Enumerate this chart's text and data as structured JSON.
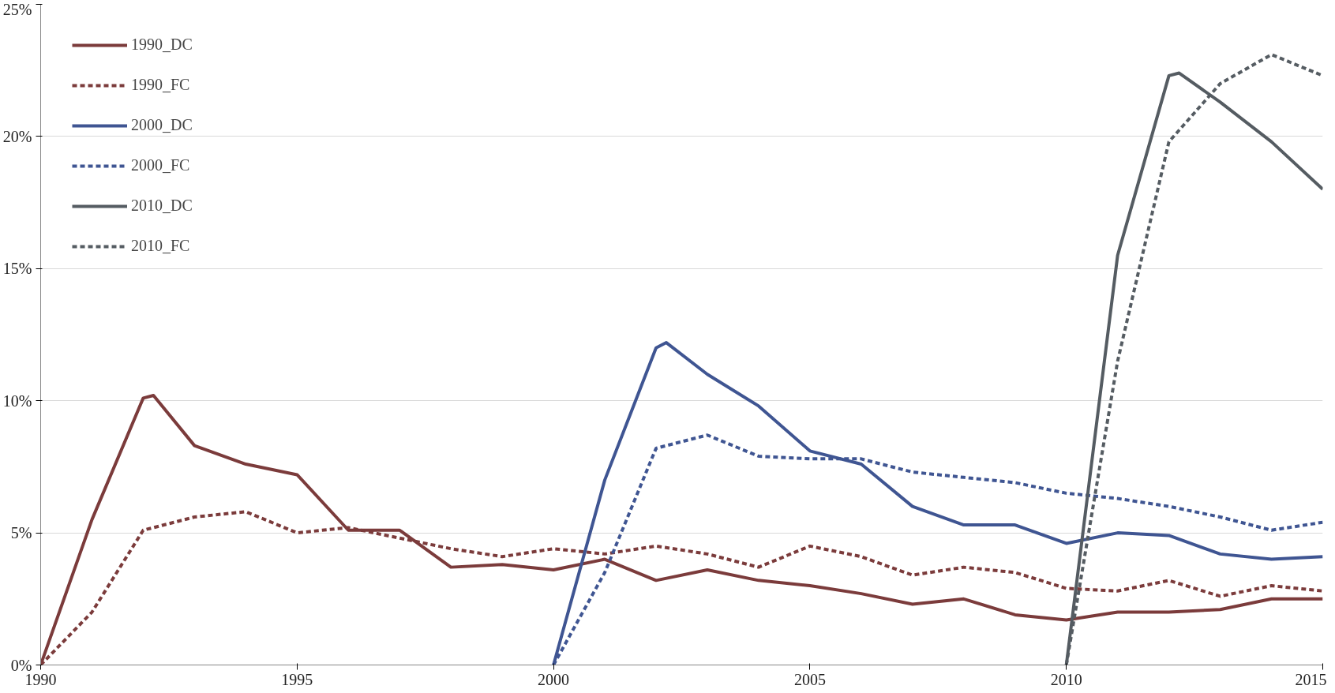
{
  "chart_data": {
    "type": "line",
    "xlim": [
      1990,
      2015
    ],
    "xticks": [
      1990,
      1995,
      2000,
      2005,
      2010,
      2015
    ],
    "ylim": [
      0,
      25
    ],
    "yticks": [
      {
        "value": 0,
        "label": "0%"
      },
      {
        "value": 5,
        "label": "5%"
      },
      {
        "value": 10,
        "label": "10%"
      },
      {
        "value": 15,
        "label": "15%"
      },
      {
        "value": 20,
        "label": "20%"
      },
      {
        "value": 25,
        "label": "25%"
      }
    ],
    "grid": "y",
    "legend": "top left",
    "marker": "none",
    "series": [
      {
        "name": "1990_DC",
        "color": "#7b3b3b",
        "line_style": "solid",
        "x": [
          1990,
          1991,
          1992,
          1992.2,
          1993,
          1994,
          1995,
          1996,
          1997,
          1998,
          1999,
          2000,
          2001,
          2002,
          2003,
          2004,
          2005,
          2006,
          2007,
          2008,
          2009,
          2010,
          2011,
          2012,
          2013,
          2014,
          2015
        ],
        "values": [
          0,
          5.5,
          10.1,
          10.2,
          8.3,
          7.6,
          7.2,
          5.1,
          5.1,
          3.7,
          3.8,
          3.6,
          4.0,
          3.2,
          3.6,
          3.2,
          3.0,
          2.7,
          2.3,
          2.5,
          1.9,
          1.7,
          2.0,
          2.0,
          2.1,
          2.5,
          2.5
        ]
      },
      {
        "name": "1990_FC",
        "color": "#7b3b3b",
        "line_style": "dashed",
        "x": [
          1990,
          1991,
          1992,
          1993,
          1994,
          1995,
          1996,
          1997,
          1998,
          1999,
          2000,
          2001,
          2002,
          2003,
          2004,
          2005,
          2006,
          2007,
          2008,
          2009,
          2010,
          2011,
          2012,
          2013,
          2014,
          2015
        ],
        "values": [
          0,
          2.0,
          5.1,
          5.6,
          5.8,
          5.0,
          5.2,
          4.8,
          4.4,
          4.1,
          4.4,
          4.2,
          4.5,
          4.2,
          3.7,
          4.5,
          4.1,
          3.4,
          3.7,
          3.5,
          2.9,
          2.8,
          3.2,
          2.6,
          3.0,
          2.8
        ]
      },
      {
        "name": "2000_DC",
        "color": "#3f5592",
        "line_style": "solid",
        "x": [
          2000,
          2001,
          2002,
          2002.2,
          2003,
          2004,
          2005,
          2006,
          2007,
          2008,
          2009,
          2010,
          2011,
          2012,
          2013,
          2014,
          2015
        ],
        "values": [
          0,
          7.0,
          12.0,
          12.2,
          11.0,
          9.8,
          8.1,
          7.6,
          6.0,
          5.3,
          5.3,
          4.6,
          5.0,
          4.9,
          4.2,
          4.0,
          4.1
        ]
      },
      {
        "name": "2000_FC",
        "color": "#3f5592",
        "line_style": "dashed",
        "x": [
          2000,
          2001,
          2002,
          2003,
          2004,
          2005,
          2006,
          2007,
          2008,
          2009,
          2010,
          2011,
          2012,
          2013,
          2014,
          2015
        ],
        "values": [
          0,
          3.5,
          8.2,
          8.7,
          7.9,
          7.8,
          7.8,
          7.3,
          7.1,
          6.9,
          6.5,
          6.3,
          6.0,
          5.6,
          5.1,
          5.4
        ]
      },
      {
        "name": "2010_DC",
        "color": "#555c62",
        "line_style": "solid",
        "x": [
          2010,
          2011,
          2012,
          2012.2,
          2013,
          2014,
          2015
        ],
        "values": [
          0,
          15.5,
          22.3,
          22.4,
          21.3,
          19.8,
          18.0
        ]
      },
      {
        "name": "2010_FC",
        "color": "#555c62",
        "line_style": "dashed",
        "x": [
          2010,
          2011,
          2012,
          2013,
          2014,
          2015
        ],
        "values": [
          0,
          11.5,
          19.8,
          22.0,
          23.1,
          22.3
        ]
      }
    ]
  }
}
